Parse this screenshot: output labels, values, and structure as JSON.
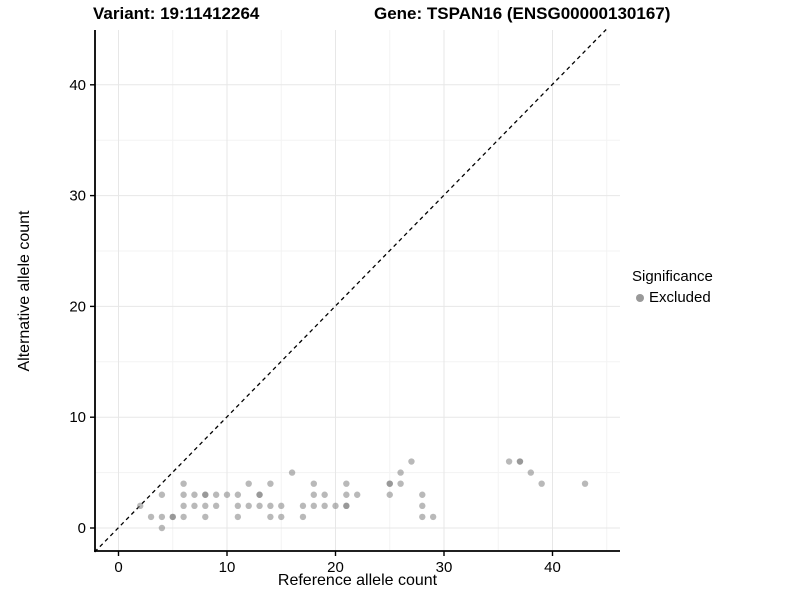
{
  "titles": {
    "variant": "Variant: 19:11412264",
    "gene": "Gene: TSPAN16 (ENSG00000130167)"
  },
  "chart_data": {
    "type": "scatter",
    "xlabel": "Reference allele count",
    "ylabel": "Alternative allele count",
    "x_ticks": [
      0,
      10,
      20,
      30,
      40
    ],
    "y_ticks": [
      0,
      10,
      20,
      30,
      40
    ],
    "x_minor_gridlines": [
      5,
      15,
      25,
      35,
      45
    ],
    "y_minor_gridlines": [
      5,
      15,
      25,
      35
    ],
    "xlim": [
      -2.2,
      46.2
    ],
    "ylim": [
      -2.1,
      45
    ],
    "grid": "on",
    "point_color": "#808080",
    "identity_line": {
      "type": "dashed",
      "color": "#000000",
      "equation": "y = x"
    },
    "legend": {
      "title": "Significance",
      "position": "right",
      "entries": [
        {
          "label": "Excluded",
          "color": "#999999"
        }
      ]
    },
    "series": [
      {
        "name": "Excluded",
        "points": [
          [
            4,
            0
          ],
          [
            3,
            1
          ],
          [
            4,
            1
          ],
          [
            5,
            1
          ],
          [
            6,
            1
          ],
          [
            8,
            1
          ],
          [
            11,
            1
          ],
          [
            14,
            1
          ],
          [
            15,
            1
          ],
          [
            17,
            1
          ],
          [
            28,
            1
          ],
          [
            29,
            1
          ],
          [
            2,
            2
          ],
          [
            6,
            2
          ],
          [
            7,
            2
          ],
          [
            8,
            2
          ],
          [
            9,
            2
          ],
          [
            11,
            2
          ],
          [
            12,
            2
          ],
          [
            13,
            2
          ],
          [
            14,
            2
          ],
          [
            15,
            2
          ],
          [
            17,
            2
          ],
          [
            18,
            2
          ],
          [
            19,
            2
          ],
          [
            20,
            2
          ],
          [
            21,
            2
          ],
          [
            28,
            2
          ],
          [
            4,
            3
          ],
          [
            6,
            3
          ],
          [
            7,
            3
          ],
          [
            8,
            3
          ],
          [
            9,
            3
          ],
          [
            10,
            3
          ],
          [
            11,
            3
          ],
          [
            13,
            3
          ],
          [
            18,
            3
          ],
          [
            19,
            3
          ],
          [
            21,
            3
          ],
          [
            22,
            3
          ],
          [
            25,
            3
          ],
          [
            28,
            3
          ],
          [
            6,
            4
          ],
          [
            12,
            4
          ],
          [
            14,
            4
          ],
          [
            18,
            4
          ],
          [
            21,
            4
          ],
          [
            25,
            4
          ],
          [
            26,
            4
          ],
          [
            39,
            4
          ],
          [
            43,
            4
          ],
          [
            16,
            5
          ],
          [
            26,
            5
          ],
          [
            38,
            5
          ],
          [
            27,
            6
          ],
          [
            36,
            6
          ],
          [
            37,
            6
          ]
        ],
        "overlap_points": [
          [
            5,
            1
          ],
          [
            8,
            3
          ],
          [
            13,
            3
          ],
          [
            21,
            2
          ],
          [
            25,
            4
          ],
          [
            37,
            6
          ]
        ]
      }
    ]
  }
}
